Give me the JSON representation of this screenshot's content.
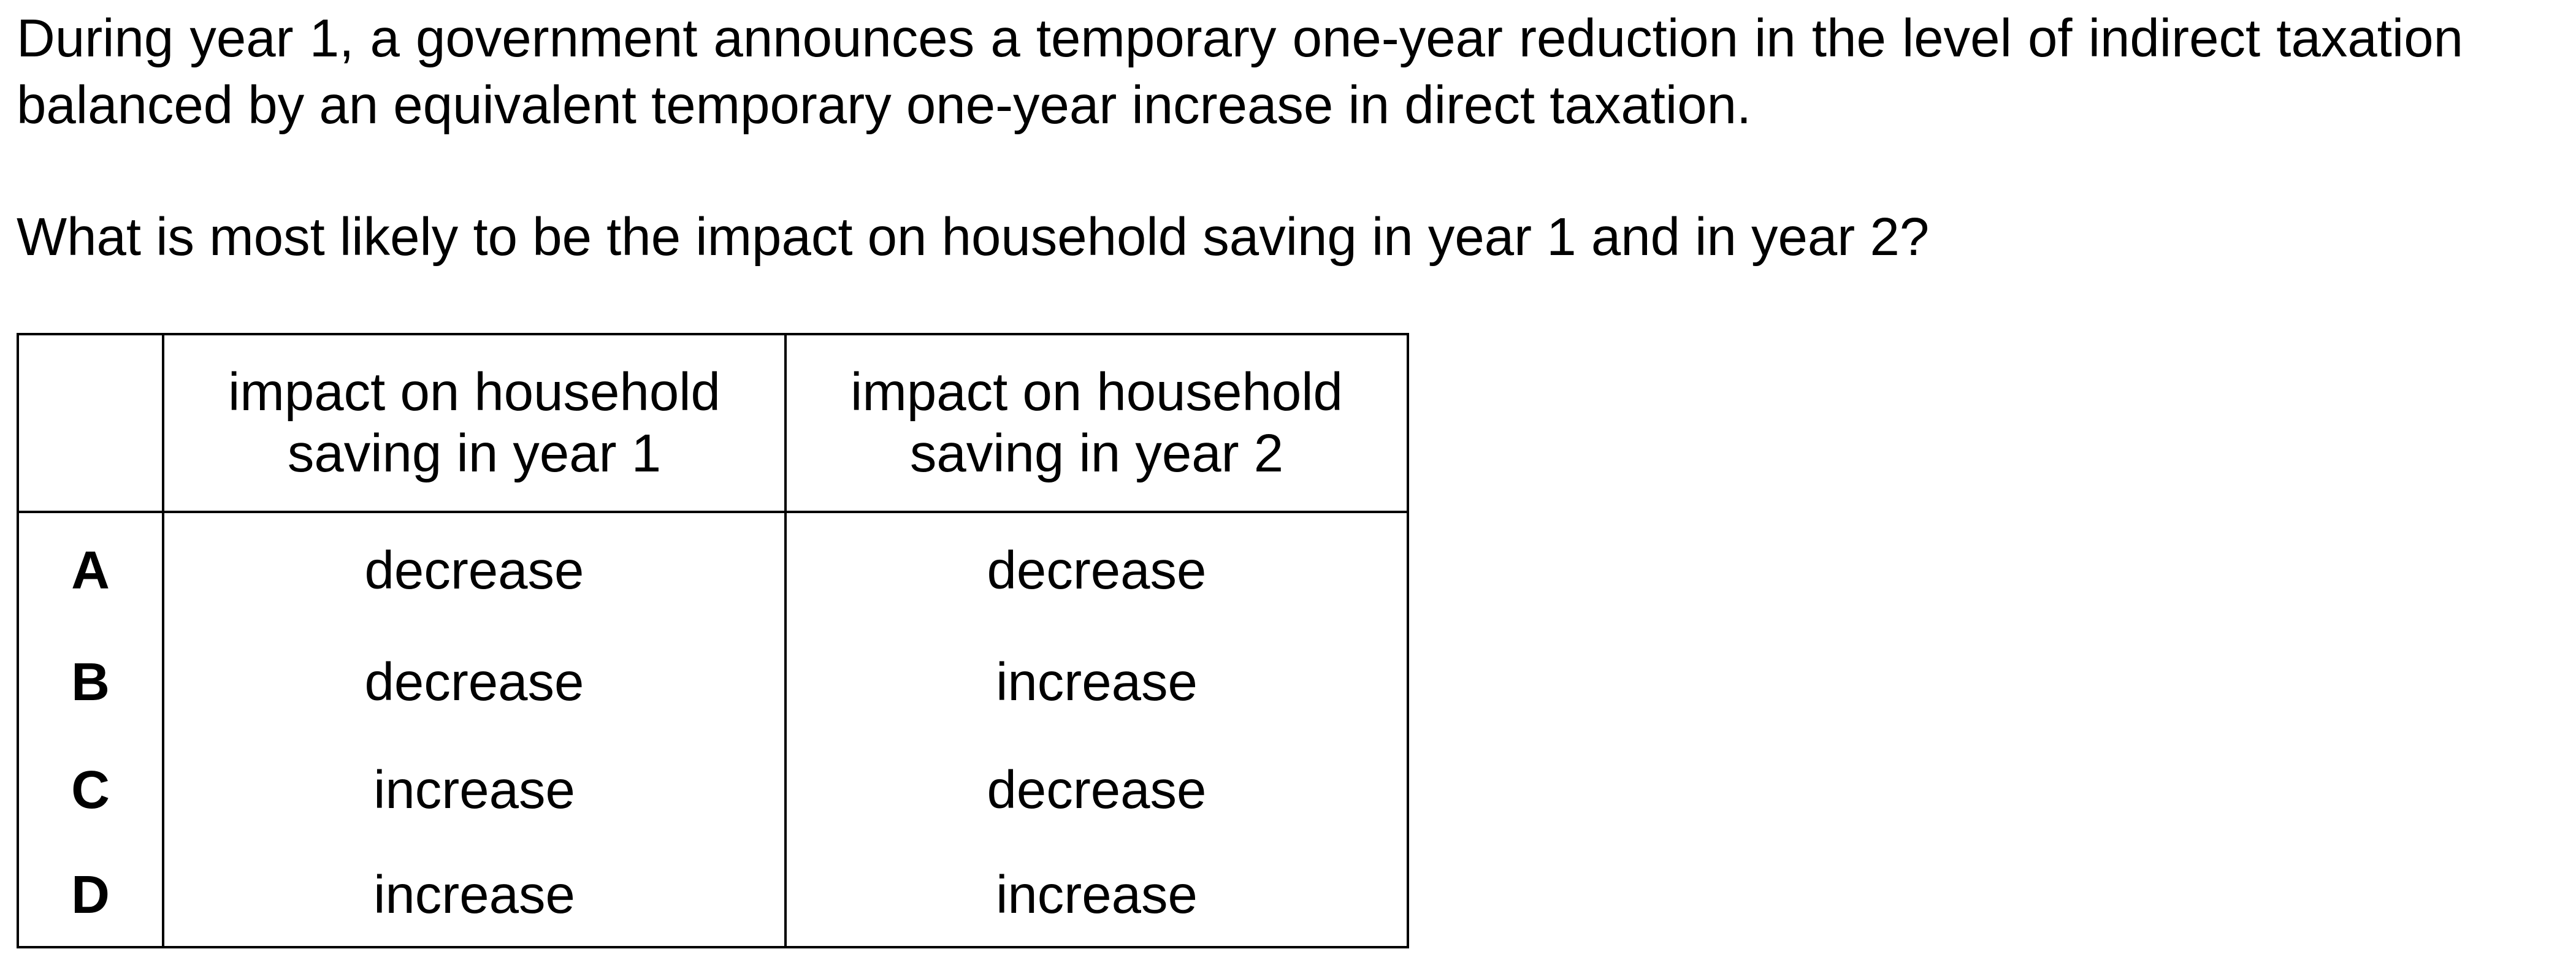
{
  "question": {
    "stem": "During year 1, a government announces a temporary one-year reduction in the level of indirect taxation balanced by an equivalent temporary one-year increase in direct taxation.",
    "prompt": "What is most likely to be the impact on household saving in year 1 and in year 2?"
  },
  "table": {
    "headers": {
      "key": "",
      "year1_line1": "impact on household",
      "year1_line2": "saving in year 1",
      "year2_line1": "impact on household",
      "year2_line2": "saving in year 2"
    },
    "rows": [
      {
        "key": "A",
        "year1": "decrease",
        "year2": "decrease"
      },
      {
        "key": "B",
        "year1": "decrease",
        "year2": "increase"
      },
      {
        "key": "C",
        "year1": "increase",
        "year2": "decrease"
      },
      {
        "key": "D",
        "year1": "increase",
        "year2": "increase"
      }
    ]
  }
}
